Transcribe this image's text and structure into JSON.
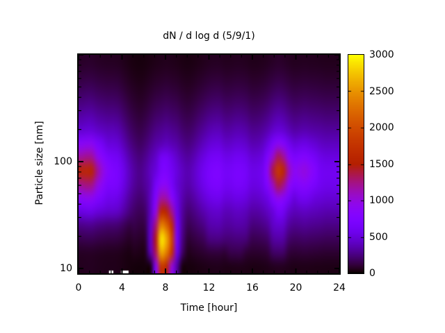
{
  "figure": {
    "background_color": "#ffffff",
    "text_color": "#000000",
    "border_color": "#000000"
  },
  "chart_data": {
    "type": "heatmap",
    "title": "dN / d log d (5/9/1)",
    "xlabel": "Time [hour]",
    "ylabel": "Particle size [nm]",
    "x_range": [
      0,
      24
    ],
    "x_ticks_major": [
      0,
      4,
      8,
      12,
      16,
      20,
      24
    ],
    "x_ticks_minor": [
      1,
      2,
      3,
      5,
      6,
      7,
      9,
      10,
      11,
      13,
      14,
      15,
      17,
      18,
      19,
      21,
      22,
      23
    ],
    "y_scale": "log",
    "y_range": [
      9,
      1000
    ],
    "y_ticks_labeled": [
      10,
      100
    ],
    "y_ticks_major": [
      10,
      100,
      1000
    ],
    "y_ticks_minor": [
      20,
      30,
      40,
      50,
      60,
      70,
      80,
      90,
      200,
      300,
      400,
      500,
      600,
      700,
      800,
      900
    ],
    "grid_lines": "off",
    "colorbar": {
      "min": 0,
      "max": 3000,
      "ticks": [
        0,
        500,
        1000,
        1500,
        2000,
        2500,
        3000
      ],
      "palette_name": "gnuplot pm3d (black-violet-magenta-red-orange-yellow)",
      "palette_stops": {
        "0": "#000000",
        "375": "#5a00b4",
        "750": "#8004ff",
        "1125": "#9c0db4",
        "1500": "#b42000",
        "1875": "#ca3e00",
        "2250": "#dd6c00",
        "2625": "#efab00",
        "3000": "#ffff00"
      }
    },
    "missing_data_gaps_hours": [
      [
        2.8,
        3.2
      ],
      [
        3.9,
        4.6
      ]
    ],
    "grid": {
      "time_hours": [
        0,
        0.5,
        1,
        1.5,
        2,
        2.5,
        3,
        3.5,
        4,
        4.5,
        5,
        5.5,
        6,
        6.5,
        7,
        7.5,
        8,
        8.5,
        9,
        9.5,
        10,
        10.5,
        11,
        11.5,
        12,
        12.5,
        13,
        13.5,
        14,
        14.5,
        15,
        15.5,
        16,
        16.5,
        17,
        17.5,
        18,
        18.5,
        19,
        19.5,
        20,
        20.5,
        21,
        21.5,
        22,
        22.5,
        23,
        23.5,
        24
      ],
      "sizes_nm_top_to_bottom": [
        1000,
        736,
        541,
        398,
        293,
        215,
        158,
        117,
        86,
        63,
        46,
        34,
        25,
        18.5,
        13.6,
        10
      ],
      "values": [
        [
          76,
          80,
          80,
          72,
          68,
          64,
          64,
          60,
          48,
          36,
          28,
          24,
          28,
          36,
          44,
          48,
          52,
          48,
          44,
          36,
          32,
          36,
          44,
          52,
          60,
          64,
          64,
          56,
          56,
          60,
          60,
          56,
          48,
          48,
          52,
          60,
          72,
          80,
          76,
          64,
          56,
          58,
          60,
          58,
          56,
          54,
          52,
          52,
          52
        ],
        [
          114,
          120,
          120,
          108,
          102,
          96,
          96,
          90,
          72,
          54,
          42,
          36,
          42,
          54,
          66,
          72,
          78,
          72,
          66,
          54,
          48,
          54,
          66,
          78,
          90,
          96,
          96,
          84,
          84,
          90,
          90,
          84,
          72,
          72,
          78,
          90,
          108,
          120,
          114,
          96,
          84,
          86,
          90,
          86,
          84,
          82,
          78,
          78,
          78
        ],
        [
          171,
          180,
          180,
          162,
          153,
          144,
          144,
          135,
          108,
          81,
          63,
          54,
          63,
          81,
          99,
          108,
          117,
          108,
          99,
          81,
          72,
          81,
          99,
          117,
          135,
          144,
          144,
          126,
          126,
          135,
          135,
          126,
          108,
          108,
          117,
          135,
          162,
          180,
          171,
          144,
          126,
          130,
          135,
          130,
          126,
          122,
          117,
          117,
          117
        ],
        [
          247,
          260,
          260,
          234,
          221,
          208,
          208,
          195,
          156,
          117,
          91,
          78,
          91,
          117,
          143,
          156,
          169,
          156,
          143,
          117,
          104,
          117,
          143,
          169,
          195,
          208,
          208,
          182,
          182,
          195,
          195,
          182,
          156,
          156,
          169,
          195,
          234,
          260,
          247,
          208,
          182,
          187,
          195,
          187,
          182,
          177,
          169,
          169,
          169
        ],
        [
          342,
          360,
          360,
          324,
          306,
          288,
          288,
          270,
          216,
          162,
          126,
          108,
          126,
          162,
          198,
          216,
          234,
          216,
          198,
          162,
          144,
          162,
          198,
          234,
          270,
          288,
          288,
          252,
          252,
          270,
          270,
          252,
          216,
          216,
          234,
          270,
          324,
          360,
          342,
          288,
          252,
          259,
          270,
          259,
          252,
          245,
          234,
          234,
          234
        ],
        [
          456,
          480,
          480,
          432,
          408,
          384,
          384,
          360,
          288,
          216,
          168,
          144,
          168,
          216,
          264,
          288,
          312,
          288,
          264,
          216,
          192,
          216,
          264,
          312,
          360,
          384,
          384,
          336,
          336,
          360,
          360,
          336,
          288,
          288,
          312,
          360,
          432,
          480,
          456,
          384,
          336,
          346,
          360,
          346,
          336,
          326,
          312,
          312,
          312
        ],
        [
          839,
          870,
          870,
          708,
          607,
          496,
          496,
          465,
          372,
          279,
          217,
          186,
          217,
          279,
          341,
          372,
          403,
          372,
          341,
          279,
          248,
          279,
          341,
          403,
          465,
          496,
          496,
          434,
          434,
          465,
          465,
          434,
          372,
          372,
          403,
          515,
          698,
          845,
          779,
          596,
          494,
          516,
          540,
          501,
          464,
          421,
          403,
          403,
          403
        ],
        [
          1180,
          1220,
          1200,
          960,
          810,
          690,
          640,
          600,
          480,
          360,
          280,
          240,
          280,
          360,
          440,
          610,
          640,
          540,
          440,
          360,
          320,
          360,
          440,
          520,
          600,
          640,
          640,
          560,
          560,
          600,
          600,
          560,
          480,
          480,
          520,
          720,
          1050,
          1340,
          1210,
          880,
          710,
          746,
          780,
          706,
          630,
          544,
          520,
          520,
          520
        ],
        [
          1574,
          1620,
          1570,
          1228,
          1002,
          816,
          736,
          690,
          552,
          414,
          322,
          276,
          322,
          414,
          506,
          682,
          718,
          612,
          506,
          414,
          368,
          414,
          506,
          598,
          690,
          736,
          736,
          644,
          644,
          690,
          690,
          644,
          552,
          552,
          598,
          890,
          1378,
          1820,
          1624,
          1136,
          894,
          942,
          990,
          882,
          764,
          626,
          598,
          598,
          598
        ],
        [
          1221,
          1265,
          1240,
          1012,
          868,
          704,
          704,
          660,
          528,
          396,
          308,
          264,
          308,
          396,
          644,
          838,
          862,
          658,
          484,
          396,
          352,
          396,
          484,
          572,
          660,
          704,
          704,
          616,
          616,
          660,
          660,
          616,
          528,
          528,
          572,
          770,
          1092,
          1375,
          1246,
          924,
          756,
          789,
          825,
          754,
          681,
          598,
          572,
          572,
          572
        ],
        [
          859,
          895,
          880,
          748,
          662,
          576,
          576,
          540,
          432,
          324,
          252,
          216,
          252,
          414,
          756,
          1162,
          1138,
          847,
          536,
          364,
          288,
          324,
          396,
          468,
          540,
          576,
          576,
          504,
          504,
          540,
          540,
          504,
          432,
          432,
          468,
          540,
          758,
          900,
          834,
          656,
          504,
          574,
          600,
          562,
          504,
          490,
          468,
          468,
          468
        ],
        [
          523,
          550,
          550,
          495,
          468,
          440,
          440,
          413,
          330,
          248,
          193,
          165,
          193,
          408,
          953,
          1630,
          1558,
          1230,
          553,
          323,
          220,
          248,
          303,
          358,
          413,
          440,
          440,
          385,
          385,
          413,
          413,
          385,
          330,
          330,
          358,
          413,
          495,
          640,
          598,
          440,
          385,
          396,
          413,
          396,
          385,
          374,
          358,
          358,
          358
        ],
        [
          266,
          280,
          280,
          252,
          238,
          224,
          224,
          210,
          168,
          126,
          140,
          120,
          140,
          440,
          1270,
          2400,
          2210,
          1680,
          620,
          300,
          160,
          180,
          220,
          260,
          340,
          360,
          360,
          320,
          320,
          340,
          340,
          320,
          240,
          240,
          260,
          300,
          420,
          460,
          440,
          320,
          280,
          288,
          300,
          288,
          280,
          272,
          260,
          260,
          260
        ],
        [
          148,
          156,
          156,
          140,
          133,
          125,
          125,
          117,
          94,
          70,
          91,
          78,
          91,
          447,
          1443,
          2900,
          2650,
          1956,
          643,
          267,
          104,
          117,
          143,
          169,
          245,
          258,
          258,
          232,
          232,
          245,
          245,
          232,
          156,
          156,
          169,
          195,
          314,
          340,
          327,
          208,
          182,
          187,
          195,
          187,
          182,
          177,
          169,
          169,
          169
        ],
        [
          67,
          70,
          70,
          63,
          60,
          56,
          56,
          53,
          42,
          32,
          49,
          42,
          49,
          373,
          1327,
          2600,
          2371,
          1764,
          557,
          203,
          56,
          63,
          77,
          91,
          105,
          112,
          112,
          98,
          138,
          145,
          145,
          98,
          84,
          84,
          91,
          105,
          186,
          200,
          193,
          112,
          98,
          101,
          105,
          101,
          98,
          95,
          91,
          91,
          91
        ],
        [
          57,
          60,
          60,
          54,
          51,
          48,
          48,
          45,
          36,
          27,
          21,
          18,
          21,
          27,
          813,
          1750,
          1600,
          1000,
          333,
          27,
          24,
          27,
          33,
          39,
          45,
          48,
          48,
          42,
          42,
          45,
          45,
          42,
          36,
          36,
          39,
          45,
          54,
          60,
          57,
          48,
          42,
          43,
          45,
          43,
          42,
          41,
          39,
          39,
          39
        ]
      ]
    }
  }
}
